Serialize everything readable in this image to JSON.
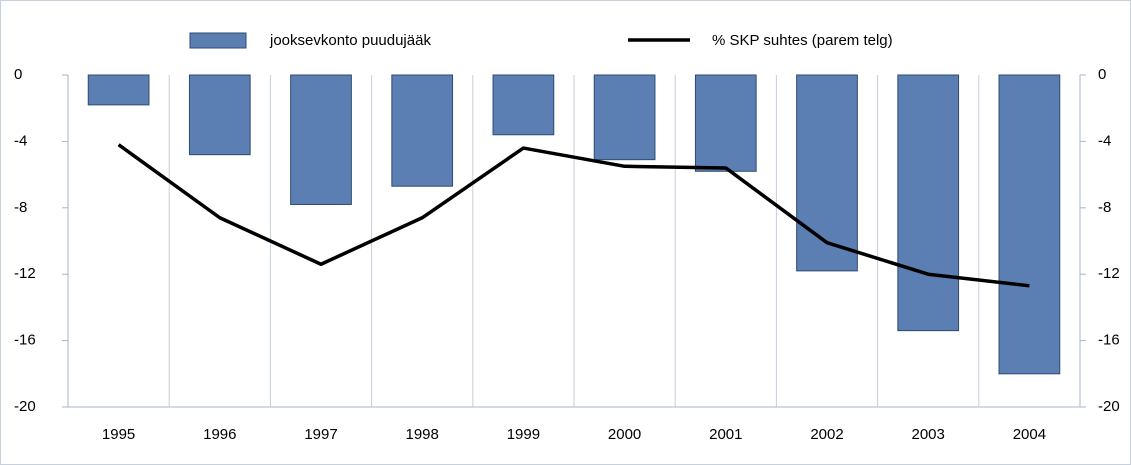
{
  "chart_data": {
    "type": "bar+line",
    "categories": [
      "1995",
      "1996",
      "1997",
      "1998",
      "1999",
      "2000",
      "2001",
      "2002",
      "2003",
      "2004"
    ],
    "series": [
      {
        "name": "jooksevkonto puudujääk",
        "type": "bar",
        "color": "#5b7fb3",
        "axis": "y",
        "values": [
          -1.8,
          -4.8,
          -7.8,
          -6.7,
          -3.6,
          -5.1,
          -5.8,
          -11.8,
          -15.4,
          -18.0
        ]
      },
      {
        "name": "% SKP suhtes (parem telg)",
        "type": "line",
        "color": "#000000",
        "axis": "y2",
        "values": [
          -4.2,
          -8.6,
          -11.4,
          -8.6,
          -4.4,
          -5.5,
          -5.6,
          -10.1,
          -12.0,
          -12.7
        ]
      }
    ],
    "ylim": [
      -20,
      0
    ],
    "yticks": [
      0,
      -4,
      -8,
      -12,
      -16,
      -20
    ],
    "y2lim": [
      -20,
      0
    ],
    "y2ticks": [
      0,
      -4,
      -8,
      -12,
      -16,
      -20
    ],
    "legend": "top"
  }
}
